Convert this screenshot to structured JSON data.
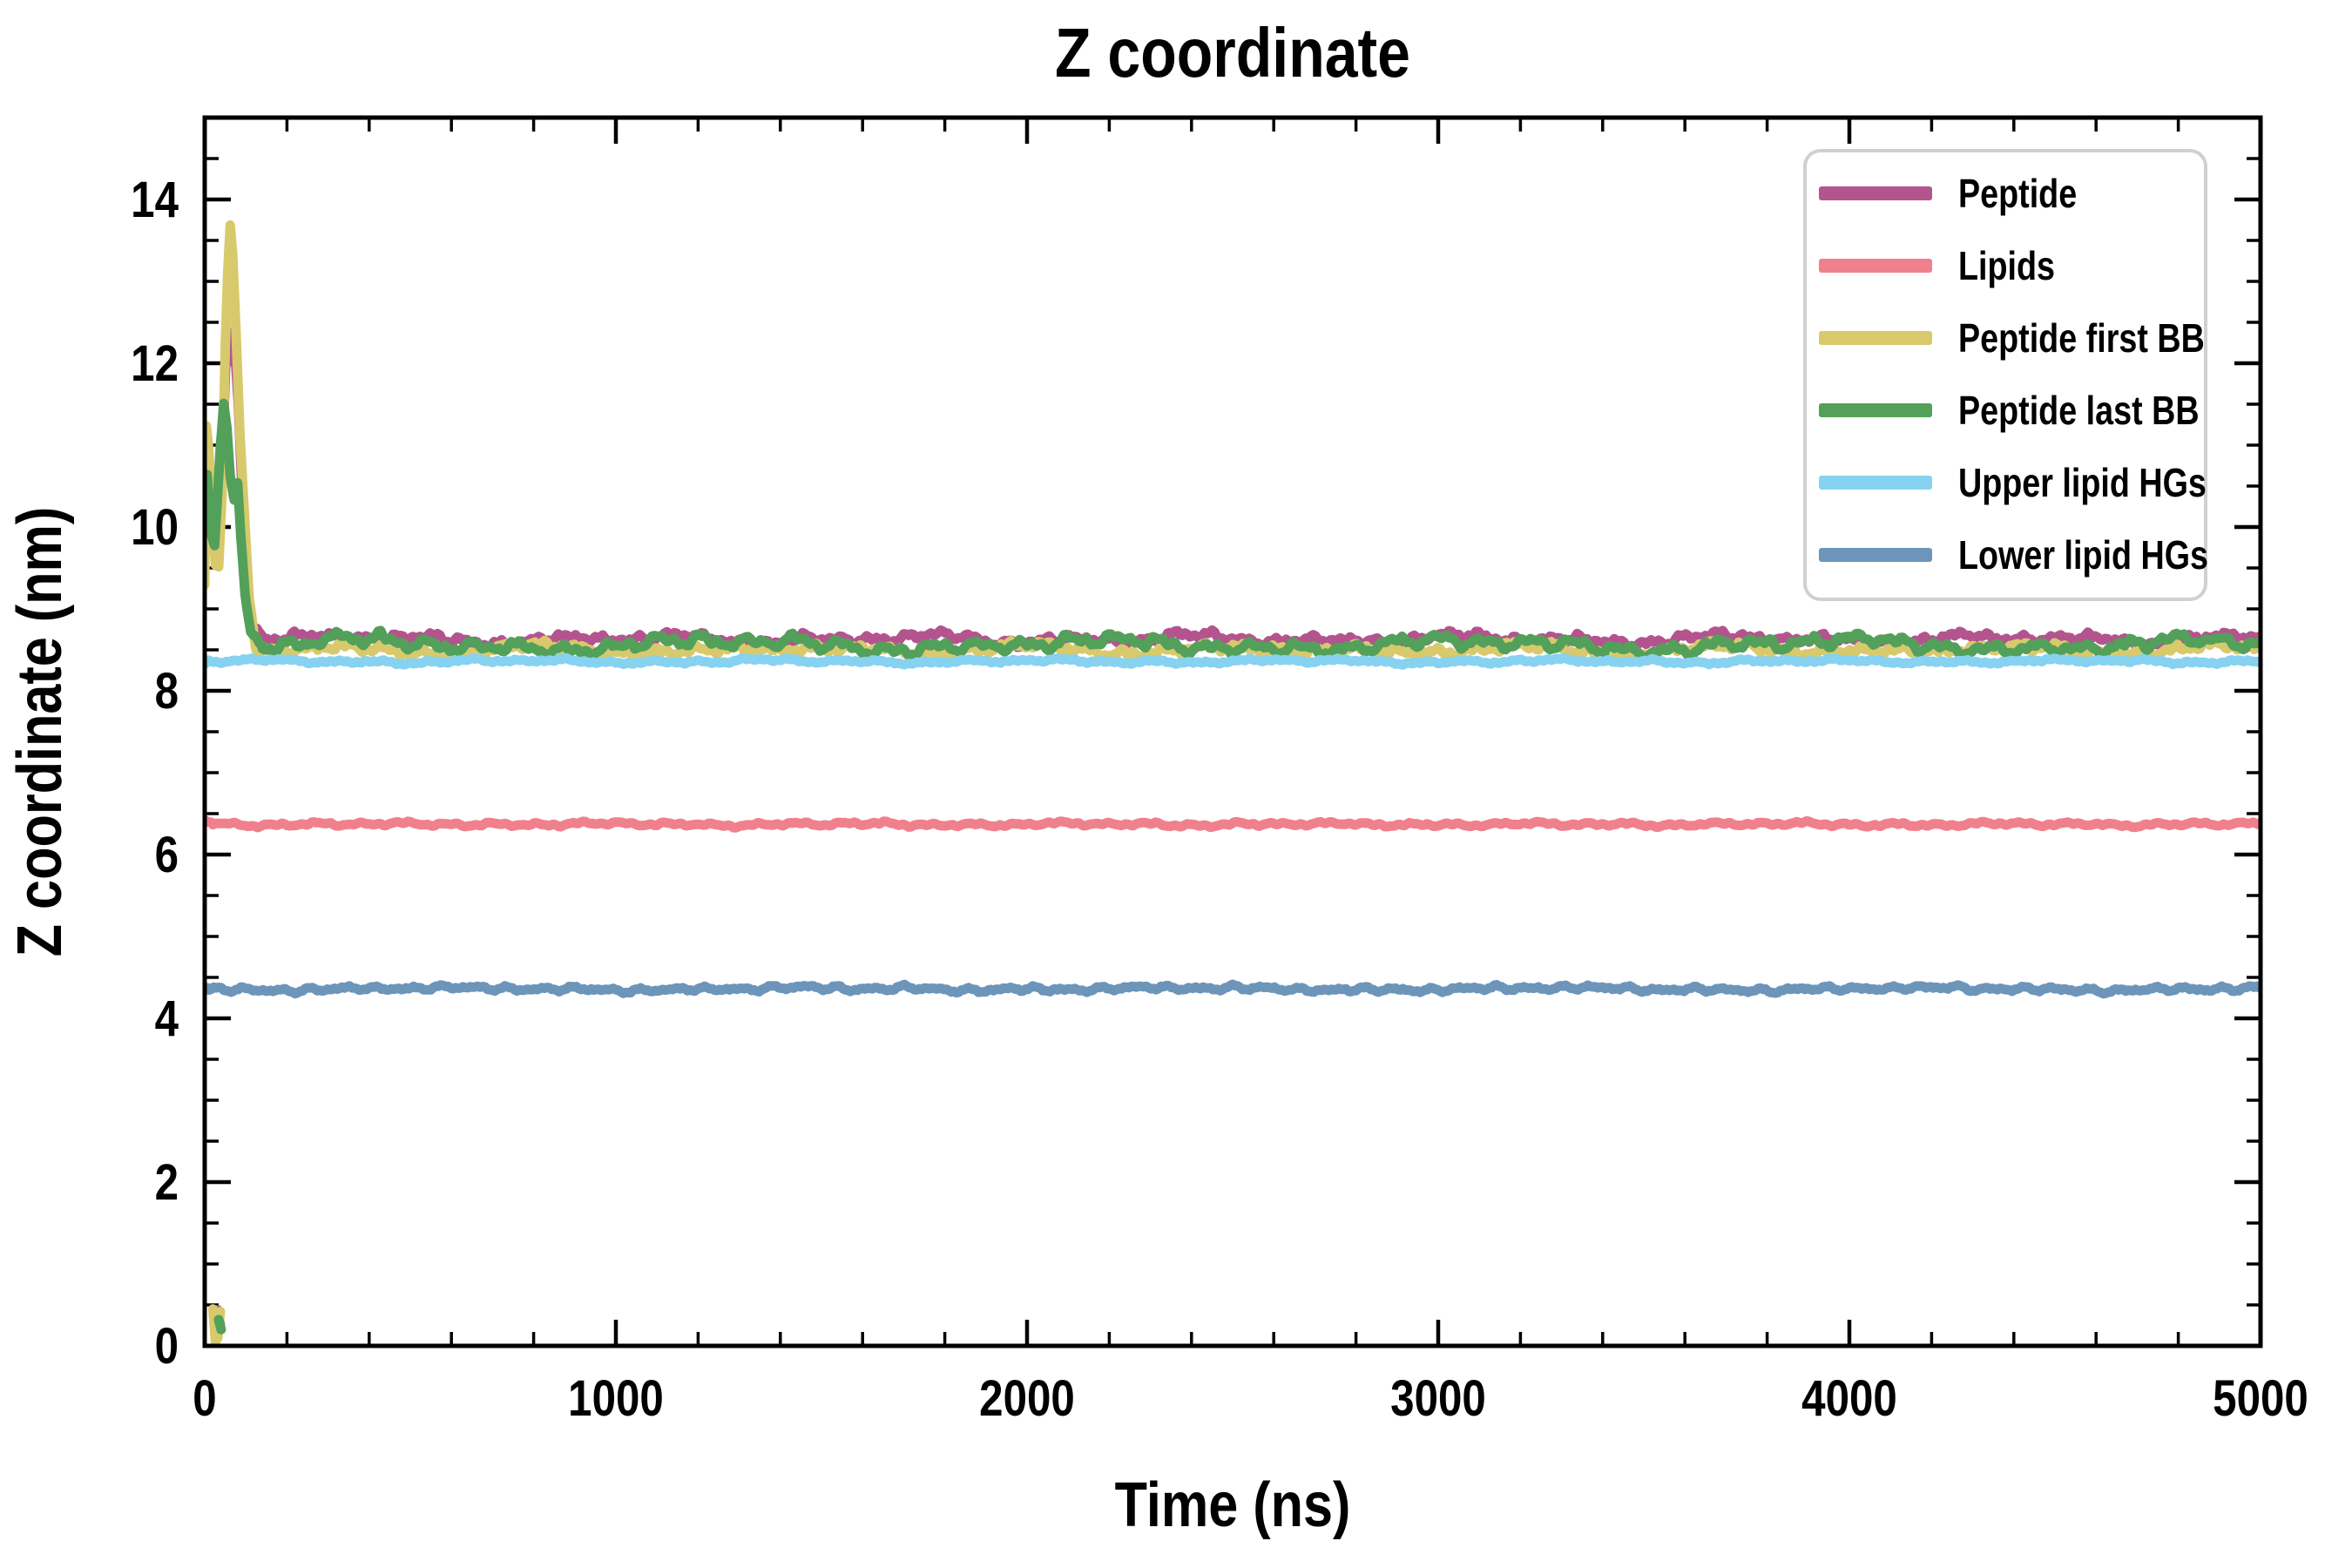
{
  "figure": {
    "background": "#ffffff",
    "axis_color": "#000000",
    "legend_border_color": "#d0d0d0",
    "legend_background": "#ffffff"
  },
  "chart_data": {
    "type": "line",
    "title": "Z coordinate",
    "xlabel": "Time (ns)",
    "ylabel": "Z coordinate (nm)",
    "xlim": [
      0,
      5000
    ],
    "ylim": [
      0,
      15
    ],
    "x_major_ticks": [
      0,
      1000,
      2000,
      3000,
      4000,
      5000
    ],
    "x_minor_step": 200,
    "y_major_ticks": [
      0,
      2,
      4,
      6,
      8,
      10,
      12,
      14
    ],
    "y_minor_step": 0.5,
    "grid": false,
    "legend_position": "upper right",
    "sampling_note": "Steady traces fluctuate randomly about 'mean' within ±'amp'; 'transient' lists [time_ns, z_nm] keypoints of the initial 0-150 ns relaxation; 'extra_segments' are the small near-zero artifacts at ~20-40 ns.",
    "series": [
      {
        "name": "Peptide",
        "color": "#b3548f",
        "line_width": 11,
        "seed": 11,
        "transient": [
          [
            0,
            9.95
          ],
          [
            4,
            10.5
          ],
          [
            14,
            10.15
          ],
          [
            26,
            10.4
          ],
          [
            36,
            10.2
          ],
          [
            44,
            11.0
          ],
          [
            54,
            12.45
          ],
          [
            60,
            12.05
          ],
          [
            70,
            12.4
          ],
          [
            82,
            11.5
          ],
          [
            92,
            10.3
          ],
          [
            102,
            9.2
          ],
          [
            115,
            8.8
          ],
          [
            140,
            8.65
          ]
        ],
        "steady": {
          "from": 140,
          "to": 5000,
          "mean": 8.63,
          "amp": 0.085
        },
        "extra_segments": [
          [
            [
              26,
              0.3
            ],
            [
              32,
              0.44
            ],
            [
              38,
              0.25
            ]
          ]
        ]
      },
      {
        "name": "Lipids",
        "color": "#f0808d",
        "line_width": 11,
        "seed": 22,
        "transient": [
          [
            0,
            6.42
          ],
          [
            20,
            6.38
          ]
        ],
        "steady": {
          "from": 20,
          "to": 5000,
          "mean": 6.37,
          "amp": 0.03
        },
        "extra_segments": []
      },
      {
        "name": "Peptide first BB",
        "color": "#d8c96c",
        "line_width": 11,
        "seed": 33,
        "transient": [
          [
            0,
            9.3
          ],
          [
            4,
            11.25
          ],
          [
            10,
            10.95
          ],
          [
            18,
            10.2
          ],
          [
            26,
            9.55
          ],
          [
            34,
            9.5
          ],
          [
            42,
            10.4
          ],
          [
            50,
            12.2
          ],
          [
            56,
            13.1
          ],
          [
            62,
            13.7
          ],
          [
            68,
            13.35
          ],
          [
            76,
            12.4
          ],
          [
            86,
            11.1
          ],
          [
            96,
            10.2
          ],
          [
            108,
            9.15
          ],
          [
            125,
            8.5
          ]
        ],
        "steady": {
          "from": 125,
          "to": 5000,
          "mean": 8.5,
          "amp": 0.09
        },
        "extra_segments": [
          [
            [
              20,
              0.45
            ],
            [
              26,
              0.05
            ],
            [
              32,
              0.1
            ],
            [
              38,
              0.42
            ]
          ]
        ]
      },
      {
        "name": "Peptide last BB",
        "color": "#52a05a",
        "line_width": 11,
        "seed": 44,
        "transient": [
          [
            0,
            10.1
          ],
          [
            6,
            10.65
          ],
          [
            16,
            9.9
          ],
          [
            24,
            9.8
          ],
          [
            30,
            10.3
          ],
          [
            38,
            11.0
          ],
          [
            46,
            11.5
          ],
          [
            54,
            11.2
          ],
          [
            62,
            10.6
          ],
          [
            72,
            10.35
          ],
          [
            80,
            10.55
          ],
          [
            88,
            9.9
          ],
          [
            98,
            9.2
          ],
          [
            112,
            8.7
          ],
          [
            140,
            8.55
          ]
        ],
        "steady": {
          "from": 140,
          "to": 5000,
          "mean": 8.56,
          "amp": 0.12
        },
        "extra_segments": [
          [
            [
              34,
              0.32
            ],
            [
              40,
              0.2
            ]
          ]
        ]
      },
      {
        "name": "Upper lipid HGs",
        "color": "#86d2f0",
        "line_width": 11,
        "seed": 55,
        "transient": [
          [
            0,
            8.32
          ],
          [
            10,
            8.38
          ]
        ],
        "steady": {
          "from": 10,
          "to": 5000,
          "mean": 8.36,
          "amp": 0.032
        },
        "extra_segments": []
      },
      {
        "name": "Lower lipid HGs",
        "color": "#6d95ba",
        "line_width": 11,
        "seed": 66,
        "transient": [
          [
            0,
            4.38
          ],
          [
            10,
            4.37
          ]
        ],
        "steady": {
          "from": 10,
          "to": 5000,
          "mean": 4.36,
          "amp": 0.04
        },
        "extra_segments": []
      }
    ]
  }
}
